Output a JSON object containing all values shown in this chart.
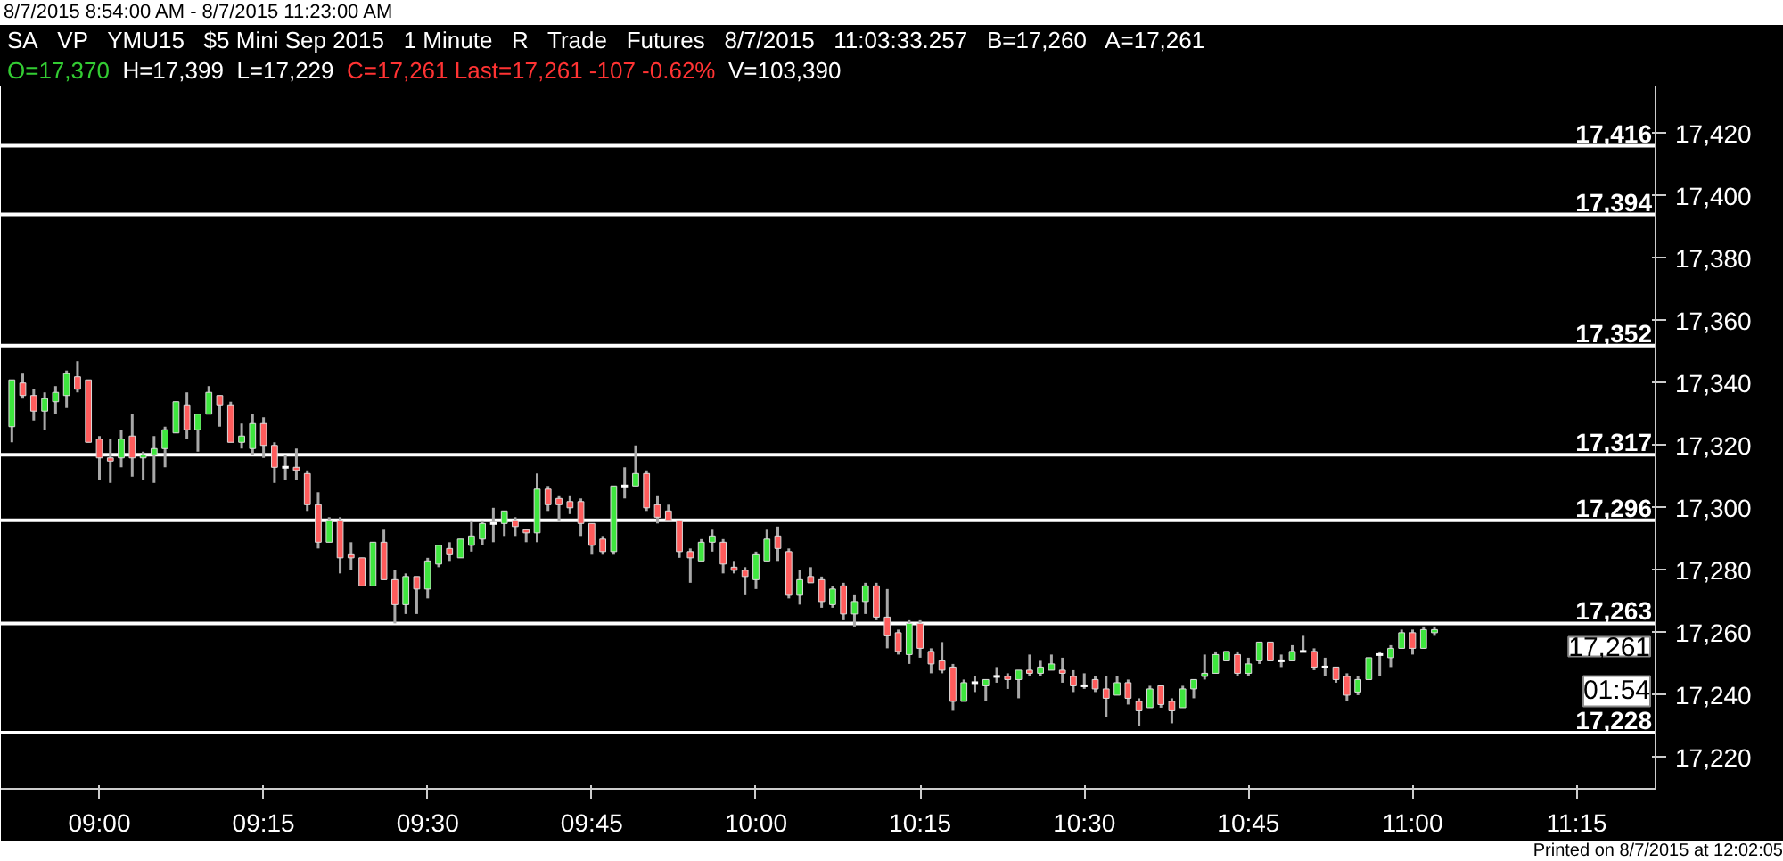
{
  "chart_data": {
    "type": "candlestick",
    "title": "8/7/2015 8:54:00 AM - 8/7/2015 11:23:00 AM",
    "subtitle": "SA  VP  YMU15  $5 Mini Sep 2015  1 Minute  R  Trade  Futures  8/7/2015  11:03:33.257  B=17,260  A=17,261",
    "x": [
      8.8667,
      8.8833,
      8.9,
      8.9167,
      8.9333,
      8.95,
      8.9667,
      8.9833,
      9,
      9.0167,
      9.0333,
      9.05,
      9.0667,
      9.0833,
      9.1,
      9.1167,
      9.1333,
      9.15,
      9.1667,
      9.1833,
      9.2,
      9.2167,
      9.2333,
      9.25,
      9.2667,
      9.2833,
      9.3,
      9.3167,
      9.3333,
      9.35,
      9.3667,
      9.3833,
      9.4,
      9.4167,
      9.4333,
      9.45,
      9.4667,
      9.4833,
      9.5,
      9.5167,
      9.5333,
      9.55,
      9.5667,
      9.5833,
      9.6,
      9.6167,
      9.6333,
      9.65,
      9.6667,
      9.6833,
      9.7,
      9.7167,
      9.7333,
      9.75,
      9.7667,
      9.7833,
      9.8,
      9.8167,
      9.8333,
      9.85,
      9.8667,
      9.8833,
      9.9,
      9.9167,
      9.9333,
      9.95,
      9.9667,
      9.9833,
      10,
      10.0167,
      10.0333,
      10.05,
      10.0667,
      10.0833,
      10.1,
      10.1167,
      10.1333,
      10.15,
      10.1667,
      10.1833,
      10.2,
      10.2167,
      10.2333,
      10.25,
      10.2667,
      10.2833,
      10.3,
      10.3167,
      10.3333,
      10.35,
      10.3667,
      10.3833,
      10.4,
      10.4167,
      10.4333,
      10.45,
      10.4667,
      10.4833,
      10.5,
      10.5167,
      10.5333,
      10.55,
      10.5667,
      10.5833,
      10.6,
      10.6167,
      10.6333,
      10.65,
      10.6667,
      10.6833,
      10.7,
      10.7167,
      10.7333,
      10.75,
      10.7667,
      10.7833,
      10.8,
      10.8167,
      10.8333,
      10.85,
      10.8667,
      10.8833,
      10.9,
      10.9167,
      10.9333,
      10.95,
      10.9667,
      10.9833,
      11,
      11.0167,
      11.0333
    ],
    "ohlc": [
      [
        17326,
        17341,
        17321,
        17341
      ],
      [
        17340,
        17343,
        17335,
        17336
      ],
      [
        17336,
        17338,
        17328,
        17331
      ],
      [
        17331,
        17337,
        17325,
        17335
      ],
      [
        17334,
        17339,
        17330,
        17337
      ],
      [
        17336,
        17344,
        17332,
        17343
      ],
      [
        17342,
        17347,
        17337,
        17338
      ],
      [
        17341,
        17341,
        17321,
        17321
      ],
      [
        17322,
        17323,
        17309,
        17316
      ],
      [
        17316,
        17322,
        17308,
        17315
      ],
      [
        17316,
        17325,
        17313,
        17322
      ],
      [
        17323,
        17330,
        17310,
        17316
      ],
      [
        17316,
        17318,
        17309,
        17317
      ],
      [
        17317,
        17323,
        17308,
        17319
      ],
      [
        17319,
        17326,
        17313,
        17325
      ],
      [
        17324,
        17334,
        17324,
        17334
      ],
      [
        17333,
        17337,
        17322,
        17325
      ],
      [
        17325,
        17330,
        17318,
        17330
      ],
      [
        17330,
        17339,
        17330,
        17337
      ],
      [
        17336,
        17336,
        17326,
        17333
      ],
      [
        17333,
        17334,
        17321,
        17321
      ],
      [
        17321,
        17327,
        17319,
        17323
      ],
      [
        17319,
        17330,
        17317,
        17327
      ],
      [
        17327,
        17329,
        17316,
        17320
      ],
      [
        17320,
        17321,
        17308,
        17313
      ],
      [
        17313,
        17317,
        17309,
        17313
      ],
      [
        17313,
        17319,
        17309,
        17312
      ],
      [
        17311,
        17312,
        17299,
        17301
      ],
      [
        17301,
        17305,
        17287,
        17289
      ],
      [
        17289,
        17297,
        17289,
        17296
      ],
      [
        17296,
        17297,
        17279,
        17284
      ],
      [
        17285,
        17289,
        17280,
        17284
      ],
      [
        17284,
        17284,
        17275,
        17275
      ],
      [
        17275,
        17289,
        17275,
        17289
      ],
      [
        17289,
        17293,
        17277,
        17277
      ],
      [
        17277,
        17280,
        17263,
        17269
      ],
      [
        17269,
        17279,
        17266,
        17278
      ],
      [
        17278,
        17278,
        17266,
        17274
      ],
      [
        17274,
        17284,
        17271,
        17283
      ],
      [
        17282,
        17288,
        17281,
        17288
      ],
      [
        17287,
        17289,
        17283,
        17285
      ],
      [
        17284,
        17290,
        17284,
        17290
      ],
      [
        17288,
        17296,
        17286,
        17291
      ],
      [
        17290,
        17296,
        17288,
        17295
      ],
      [
        17295,
        17300,
        17289,
        17295
      ],
      [
        17295,
        17299,
        17291,
        17299
      ],
      [
        17296,
        17297,
        17291,
        17294
      ],
      [
        17293,
        17293,
        17289,
        17292
      ],
      [
        17292,
        17311,
        17289,
        17306
      ],
      [
        17306,
        17307,
        17299,
        17301
      ],
      [
        17303,
        17304,
        17296,
        17301
      ],
      [
        17302,
        17304,
        17298,
        17300
      ],
      [
        17302,
        17303,
        17291,
        17295
      ],
      [
        17295,
        17295,
        17285,
        17288
      ],
      [
        17290,
        17291,
        17285,
        17286
      ],
      [
        17286,
        17307,
        17285,
        17307
      ],
      [
        17307,
        17313,
        17303,
        17307
      ],
      [
        17307,
        17320,
        17307,
        17311
      ],
      [
        17311,
        17312,
        17299,
        17300
      ],
      [
        17301,
        17304,
        17295,
        17297
      ],
      [
        17299,
        17301,
        17296,
        17296
      ],
      [
        17296,
        17296,
        17284,
        17286
      ],
      [
        17286,
        17287,
        17276,
        17284
      ],
      [
        17283,
        17290,
        17283,
        17289
      ],
      [
        17289,
        17293,
        17286,
        17291
      ],
      [
        17289,
        17290,
        17279,
        17282
      ],
      [
        17281,
        17283,
        17279,
        17280
      ],
      [
        17280,
        17281,
        17272,
        17278
      ],
      [
        17277,
        17286,
        17274,
        17285
      ],
      [
        17283,
        17293,
        17283,
        17290
      ],
      [
        17291,
        17294,
        17283,
        17287
      ],
      [
        17286,
        17287,
        17271,
        17272
      ],
      [
        17272,
        17280,
        17269,
        17277
      ],
      [
        17278,
        17281,
        17276,
        17276
      ],
      [
        17277,
        17278,
        17268,
        17270
      ],
      [
        17269,
        17275,
        17268,
        17274
      ],
      [
        17275,
        17276,
        17264,
        17266
      ],
      [
        17266,
        17272,
        17262,
        17270
      ],
      [
        17270,
        17276,
        17266,
        17275
      ],
      [
        17275,
        17276,
        17264,
        17265
      ],
      [
        17265,
        17274,
        17255,
        17259
      ],
      [
        17260,
        17261,
        17253,
        17254
      ],
      [
        17253,
        17264,
        17250,
        17263
      ],
      [
        17263,
        17264,
        17252,
        17255
      ],
      [
        17254,
        17255,
        17247,
        17250
      ],
      [
        17251,
        17257,
        17247,
        17248
      ],
      [
        17249,
        17250,
        17235,
        17238
      ],
      [
        17238,
        17245,
        17238,
        17244
      ],
      [
        17244,
        17246,
        17241,
        17244
      ],
      [
        17243,
        17245,
        17238,
        17245
      ],
      [
        17246,
        17249,
        17244,
        17246
      ],
      [
        17246,
        17247,
        17242,
        17245
      ],
      [
        17245,
        17248,
        17239,
        17248
      ],
      [
        17248,
        17253,
        17246,
        17247
      ],
      [
        17247,
        17251,
        17246,
        17249
      ],
      [
        17248,
        17253,
        17248,
        17250
      ],
      [
        17248,
        17252,
        17244,
        17247
      ],
      [
        17246,
        17248,
        17241,
        17243
      ],
      [
        17243,
        17247,
        17242,
        17243
      ],
      [
        17245,
        17246,
        17241,
        17242
      ],
      [
        17242,
        17246,
        17233,
        17239
      ],
      [
        17240,
        17246,
        17240,
        17244
      ],
      [
        17244,
        17245,
        17237,
        17239
      ],
      [
        17238,
        17239,
        17230,
        17235
      ],
      [
        17236,
        17243,
        17236,
        17242
      ],
      [
        17243,
        17243,
        17236,
        17237
      ],
      [
        17238,
        17239,
        17231,
        17235
      ],
      [
        17236,
        17243,
        17236,
        17242
      ],
      [
        17242,
        17245,
        17239,
        17245
      ],
      [
        17246,
        17253,
        17245,
        17247
      ],
      [
        17247,
        17254,
        17247,
        17253
      ],
      [
        17251,
        17254,
        17251,
        17254
      ],
      [
        17253,
        17254,
        17246,
        17247
      ],
      [
        17247,
        17252,
        17246,
        17250
      ],
      [
        17251,
        17257,
        17250,
        17257
      ],
      [
        17257,
        17257,
        17251,
        17251
      ],
      [
        17251,
        17253,
        17249,
        17251
      ],
      [
        17251,
        17256,
        17251,
        17254
      ],
      [
        17254,
        17259,
        17254,
        17254
      ],
      [
        17254,
        17255,
        17248,
        17249
      ],
      [
        17249,
        17252,
        17246,
        17249
      ],
      [
        17249,
        17249,
        17244,
        17245
      ],
      [
        17246,
        17247,
        17238,
        17240
      ],
      [
        17241,
        17246,
        17240,
        17245
      ],
      [
        17245,
        17252,
        17245,
        17252
      ],
      [
        17253,
        17254,
        17246,
        17253
      ],
      [
        17252,
        17256,
        17249,
        17255
      ],
      [
        17255,
        17261,
        17255,
        17260
      ],
      [
        17260,
        17261,
        17253,
        17255
      ],
      [
        17255,
        17262,
        17255,
        17261
      ],
      [
        17260,
        17262,
        17259,
        17261
      ]
    ],
    "xlim": [
      8.85,
      11.37
    ],
    "ylim": [
      17210,
      17435
    ],
    "xticks": [
      {
        "value": 9,
        "label": "09:00"
      },
      {
        "value": 9.25,
        "label": "09:15"
      },
      {
        "value": 9.5,
        "label": "09:30"
      },
      {
        "value": 9.75,
        "label": "09:45"
      },
      {
        "value": 10,
        "label": "10:00"
      },
      {
        "value": 10.25,
        "label": "10:15"
      },
      {
        "value": 10.5,
        "label": "10:30"
      },
      {
        "value": 10.75,
        "label": "10:45"
      },
      {
        "value": 11,
        "label": "11:00"
      },
      {
        "value": 11.25,
        "label": "11:15"
      }
    ],
    "yticks": [
      {
        "value": 17220,
        "label": "17,220"
      },
      {
        "value": 17240,
        "label": "17,240"
      },
      {
        "value": 17260,
        "label": "17,260"
      },
      {
        "value": 17280,
        "label": "17,280"
      },
      {
        "value": 17300,
        "label": "17,300"
      },
      {
        "value": 17320,
        "label": "17,320"
      },
      {
        "value": 17340,
        "label": "17,340"
      },
      {
        "value": 17360,
        "label": "17,360"
      },
      {
        "value": 17380,
        "label": "17,380"
      },
      {
        "value": 17400,
        "label": "17,400"
      },
      {
        "value": 17420,
        "label": "17,420"
      }
    ],
    "ref_lines": [
      {
        "axis": "y",
        "value": 17416,
        "label": "17,416",
        "color": "#ffffff"
      },
      {
        "axis": "y",
        "value": 17394,
        "label": "17,394",
        "color": "#ffffff"
      },
      {
        "axis": "y",
        "value": 17352,
        "label": "17,352",
        "color": "#ffffff"
      },
      {
        "axis": "y",
        "value": 17317,
        "label": "17,317",
        "color": "#ffffff"
      },
      {
        "axis": "y",
        "value": 17296,
        "label": "17,296",
        "color": "#ffffff"
      },
      {
        "axis": "y",
        "value": 17263,
        "label": "17,263",
        "color": "#ffffff"
      },
      {
        "axis": "y",
        "value": 17228,
        "label": "17,228",
        "color": "#ffffff"
      }
    ],
    "annotations": [
      "O=17,370",
      "H=17,399",
      "L=17,229",
      "C=17,261  Last=17,261  -107  -0.62%",
      "V=103,390",
      {
        "text": "17,261",
        "y": 17261
      },
      "01:54",
      "Printed on 8/7/2015 at 12:02:05"
    ],
    "grid": false
  }
}
